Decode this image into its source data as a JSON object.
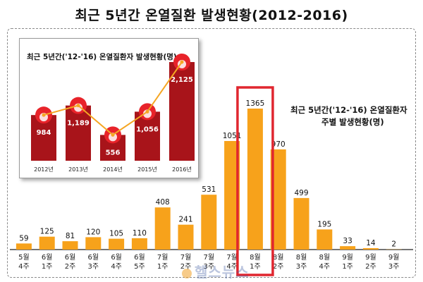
{
  "page": {
    "title": "최근  5년간  온열질환  발생현황(2012-2016)",
    "watermark": "헬스뉴스"
  },
  "colors": {
    "bar": "#f7a21b",
    "highlight_box": "#e0262f",
    "inset_bar": "#a8141a",
    "inset_circle": "#e8232a",
    "inset_line": "#f5a623"
  },
  "chart_data": [
    {
      "type": "bar",
      "title": "최근 5년간('12-'16) 온열질환자 주별 발생현황(명)",
      "title_lines": [
        "최근 5년간('12-'16) 온열질환자",
        "주별 발생현황(명)"
      ],
      "categories": [
        [
          "5월",
          "4주"
        ],
        [
          "6월",
          "1주"
        ],
        [
          "6월",
          "2주"
        ],
        [
          "6월",
          "3주"
        ],
        [
          "6월",
          "4주"
        ],
        [
          "6월",
          "5주"
        ],
        [
          "7월",
          "1주"
        ],
        [
          "7월",
          "2주"
        ],
        [
          "7월",
          "3주"
        ],
        [
          "7월",
          "4주"
        ],
        [
          "8월",
          "1주"
        ],
        [
          "8월",
          "2주"
        ],
        [
          "8월",
          "3주"
        ],
        [
          "8월",
          "4주"
        ],
        [
          "9월",
          "1주"
        ],
        [
          "9월",
          "2주"
        ],
        [
          "9월",
          "3주"
        ]
      ],
      "values": [
        59,
        125,
        81,
        120,
        105,
        110,
        408,
        241,
        531,
        1051,
        1365,
        970,
        499,
        195,
        33,
        14,
        2
      ],
      "ylim": [
        0,
        1365
      ],
      "highlight_category_index": 10,
      "grid": false,
      "legend": "none"
    },
    {
      "type": "bar",
      "title": "최근 5년간('12-'16) 온열질환자 발생현황(명)",
      "categories": [
        "2012년",
        "2013년",
        "2014년",
        "2015년",
        "2016년"
      ],
      "values": [
        984,
        1189,
        556,
        1056,
        2125
      ],
      "value_labels": [
        "984",
        "1,189",
        "556",
        "1,056",
        "2,125"
      ],
      "overlay": "line",
      "grid": false,
      "legend": "none"
    }
  ]
}
